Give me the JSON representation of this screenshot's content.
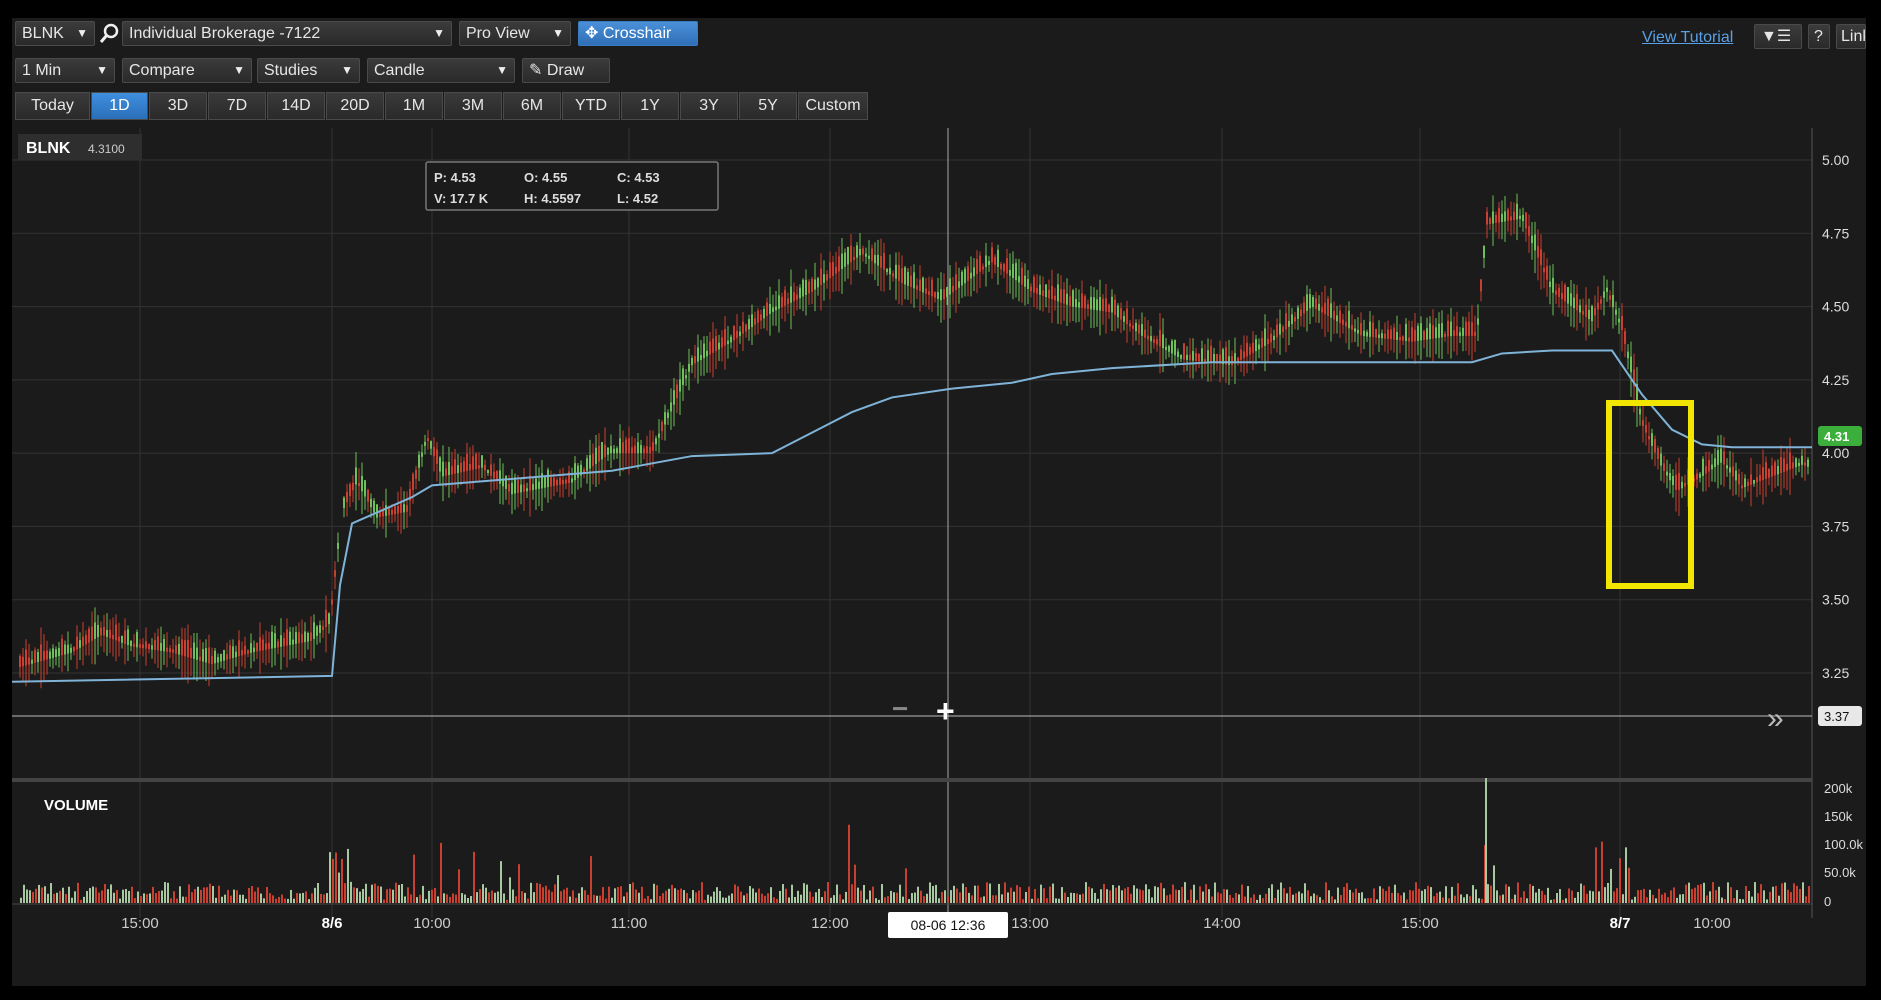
{
  "toolbar": {
    "symbol": "BLNK",
    "account": "Individual Brokerage -7122",
    "view": "Pro View",
    "crosshair_label": "Crosshair",
    "interval": "1 Min",
    "compare": "Compare",
    "studies": "Studies",
    "chart_style": "Candle",
    "draw_label": "Draw",
    "view_tutorial": "View Tutorial",
    "link_label": "Link"
  },
  "timeframes": [
    "Today",
    "1D",
    "3D",
    "7D",
    "14D",
    "20D",
    "1M",
    "3M",
    "6M",
    "YTD",
    "1Y",
    "3Y",
    "5Y",
    "Custom"
  ],
  "active_timeframe": "1D",
  "symbol_badge": {
    "symbol": "BLNK",
    "price": "4.3100"
  },
  "quote_box": {
    "p": "P: 4.53",
    "o": "O: 4.55",
    "c": "C: 4.53",
    "v": "V: 17.7 K",
    "h": "H: 4.5597",
    "l": "L: 4.52"
  },
  "price_axis": {
    "ticks": [
      "5.00",
      "4.75",
      "4.50",
      "4.25",
      "4.00",
      "3.75",
      "3.50",
      "3.25"
    ],
    "last_price": "4.31",
    "crosshair_price": "3.37"
  },
  "volume": {
    "label": "VOLUME",
    "ticks": [
      "200k",
      "150k",
      "100.0k",
      "50.0k",
      "0"
    ]
  },
  "time_axis": {
    "labels": [
      "15:00",
      "8/6",
      "10:00",
      "11:00",
      "12:00",
      "13:00",
      "14:00",
      "15:00",
      "8/7",
      "10:00"
    ],
    "crosshair_time": "08-06 12:36"
  },
  "zoom": {
    "minus": "−",
    "plus": "+"
  },
  "colors": {
    "up": "#6fbf5a",
    "down": "#c8402f",
    "vwap": "#7fb3d8",
    "highlight": "#f2e600",
    "last_price_badge": "#3cae3c"
  },
  "chart_data": {
    "type": "line",
    "series": [
      {
        "name": "BLNK",
        "x": [
          "15:00",
          "8/6",
          "10:00",
          "11:00",
          "12:00",
          "13:00",
          "14:00",
          "15:00",
          "8/7",
          "10:00"
        ],
        "values": [
          3.37,
          3.33,
          3.95,
          3.9,
          4.55,
          4.55,
          4.3,
          4.4,
          4.45,
          3.95
        ]
      }
    ],
    "ylim": [
      3.2,
      5.1
    ]
  }
}
